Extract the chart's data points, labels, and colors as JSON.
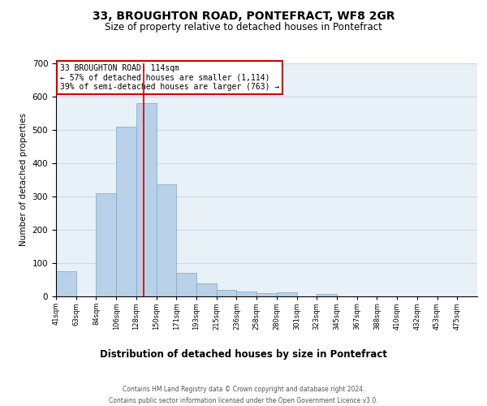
{
  "title": "33, BROUGHTON ROAD, PONTEFRACT, WF8 2GR",
  "subtitle": "Size of property relative to detached houses in Pontefract",
  "xlabel": "Distribution of detached houses by size in Pontefract",
  "ylabel": "Number of detached properties",
  "bin_labels": [
    "41sqm",
    "63sqm",
    "84sqm",
    "106sqm",
    "128sqm",
    "150sqm",
    "171sqm",
    "193sqm",
    "215sqm",
    "236sqm",
    "258sqm",
    "280sqm",
    "301sqm",
    "323sqm",
    "345sqm",
    "367sqm",
    "388sqm",
    "410sqm",
    "432sqm",
    "453sqm",
    "475sqm"
  ],
  "bar_heights": [
    75,
    0,
    310,
    510,
    580,
    335,
    70,
    40,
    20,
    15,
    10,
    12,
    0,
    8,
    0,
    0,
    0,
    0,
    0,
    0,
    0
  ],
  "bar_color": "#b8d0e8",
  "bar_edge_color": "#7aaac8",
  "red_line_x": 4.36,
  "annotation_text_line1": "33 BROUGHTON ROAD: 114sqm",
  "annotation_text_line2": "← 57% of detached houses are smaller (1,114)",
  "annotation_text_line3": "39% of semi-detached houses are larger (763) →",
  "annotation_box_color": "#ffffff",
  "annotation_box_edge_color": "#cc0000",
  "red_line_color": "#cc0000",
  "ylim": [
    0,
    700
  ],
  "yticks": [
    0,
    100,
    200,
    300,
    400,
    500,
    600,
    700
  ],
  "grid_color": "#c8daea",
  "background_color": "#e8f0f8",
  "footer_line1": "Contains HM Land Registry data © Crown copyright and database right 2024.",
  "footer_line2": "Contains public sector information licensed under the Open Government Licence v3.0."
}
